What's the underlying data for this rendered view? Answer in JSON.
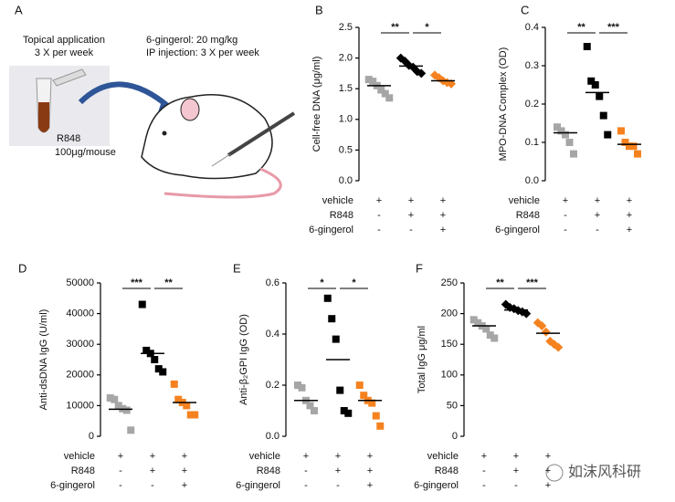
{
  "panel_a": {
    "label": "A",
    "left_line1": "Topical application",
    "left_line2": "3 X per week",
    "right_line1": "6-gingerol: 20 mg/kg",
    "right_line2": "IP injection: 3 X per week",
    "drug": "R848",
    "dose": "100μg/mouse"
  },
  "watermark": "如沫风科研",
  "chart_data": [
    {
      "type": "dot",
      "label": "B",
      "ylabel": "Cell-free DNA (μg/ml)",
      "ylim": [
        0,
        2.5
      ],
      "yticks": [
        {
          "value": 0,
          "label": "0.0"
        },
        0.5,
        {
          "value": 1,
          "label": "1.0"
        },
        1.5,
        {
          "value": 2,
          "label": "2.0"
        },
        2.5
      ],
      "series": [
        {
          "color": "#a6a6a6",
          "marker": "square",
          "values": [
            1.65,
            1.62,
            1.55,
            1.48,
            1.42,
            1.35
          ],
          "mean": 1.55
        },
        {
          "color": "#000000",
          "marker": "diamond",
          "values": [
            2.0,
            1.95,
            1.88,
            1.85,
            1.78,
            1.75
          ],
          "mean": 1.87
        },
        {
          "color": "#f5821f",
          "marker": "diamond",
          "values": [
            1.72,
            1.68,
            1.63,
            1.6,
            1.58
          ],
          "mean": 1.63
        }
      ],
      "comparisons": [
        {
          "groups": [
            0,
            1
          ],
          "label": "**"
        },
        {
          "groups": [
            1,
            2
          ],
          "label": "*"
        }
      ],
      "conditions": [
        {
          "name": "vehicle",
          "signs": [
            "+",
            "+",
            "+"
          ]
        },
        {
          "name": "R848",
          "signs": [
            "-",
            "+",
            "+"
          ]
        },
        {
          "name": "6-gingerol",
          "signs": [
            "-",
            "-",
            "+"
          ]
        }
      ]
    },
    {
      "type": "dot",
      "label": "C",
      "ylabel": "MPO-DNA Complex (OD)",
      "ylim": [
        0,
        0.4
      ],
      "yticks": [
        {
          "value": 0,
          "label": "0.0"
        },
        0.1,
        0.2,
        0.3,
        0.4
      ],
      "series": [
        {
          "color": "#a6a6a6",
          "marker": "square",
          "values": [
            0.14,
            0.13,
            0.12,
            0.1,
            0.07
          ],
          "mean": 0.125
        },
        {
          "color": "#000000",
          "marker": "square",
          "values": [
            0.35,
            0.26,
            0.25,
            0.22,
            0.17,
            0.12
          ],
          "mean": 0.23
        },
        {
          "color": "#f5821f",
          "marker": "square",
          "values": [
            0.13,
            0.1,
            0.09,
            0.09,
            0.07
          ],
          "mean": 0.095
        }
      ],
      "comparisons": [
        {
          "groups": [
            0,
            1
          ],
          "label": "**"
        },
        {
          "groups": [
            1,
            2
          ],
          "label": "***"
        }
      ],
      "conditions": [
        {
          "name": "vehicle",
          "signs": [
            "+",
            "+",
            "+"
          ]
        },
        {
          "name": "R848",
          "signs": [
            "-",
            "+",
            "+"
          ]
        },
        {
          "name": "6-gingerol",
          "signs": [
            "-",
            "-",
            "+"
          ]
        }
      ]
    },
    {
      "type": "dot",
      "label": "D",
      "ylabel": "Anti-dsDNA IgG (U/ml)",
      "ylim": [
        0,
        50000
      ],
      "yticks": [
        0,
        10000,
        20000,
        30000,
        40000,
        50000
      ],
      "series": [
        {
          "color": "#a6a6a6",
          "marker": "square",
          "values": [
            12500,
            12000,
            10000,
            9000,
            8500,
            2000
          ],
          "mean": 8800
        },
        {
          "color": "#000000",
          "marker": "square",
          "values": [
            43000,
            28000,
            27000,
            25000,
            22000,
            21000
          ],
          "mean": 27000
        },
        {
          "color": "#f5821f",
          "marker": "square",
          "values": [
            17000,
            12000,
            11000,
            10000,
            7000,
            7000
          ],
          "mean": 11000
        }
      ],
      "comparisons": [
        {
          "groups": [
            0,
            1
          ],
          "label": "***"
        },
        {
          "groups": [
            1,
            2
          ],
          "label": "**"
        }
      ],
      "conditions": [
        {
          "name": "vehicle",
          "signs": [
            "+",
            "+",
            "+"
          ]
        },
        {
          "name": "R848",
          "signs": [
            "-",
            "+",
            "+"
          ]
        },
        {
          "name": "6-gingerol",
          "signs": [
            "-",
            "-",
            "+"
          ]
        }
      ]
    },
    {
      "type": "dot",
      "label": "E",
      "ylabel": "Anti-β₂GPI IgG (OD)",
      "ylim": [
        0,
        0.6
      ],
      "yticks": [
        {
          "value": 0,
          "label": "0.0"
        },
        0.2,
        0.4,
        0.6
      ],
      "series": [
        {
          "color": "#a6a6a6",
          "marker": "square",
          "values": [
            0.2,
            0.19,
            0.14,
            0.12,
            0.1
          ],
          "mean": 0.14
        },
        {
          "color": "#000000",
          "marker": "square",
          "values": [
            0.54,
            0.46,
            0.38,
            0.18,
            0.1,
            0.09
          ],
          "mean": 0.3
        },
        {
          "color": "#f5821f",
          "marker": "square",
          "values": [
            0.2,
            0.16,
            0.14,
            0.13,
            0.08,
            0.04
          ],
          "mean": 0.14
        }
      ],
      "comparisons": [
        {
          "groups": [
            0,
            1
          ],
          "label": "*"
        },
        {
          "groups": [
            1,
            2
          ],
          "label": "*"
        }
      ],
      "conditions": [
        {
          "name": "vehicle",
          "signs": [
            "+",
            "+",
            "+"
          ]
        },
        {
          "name": "R848",
          "signs": [
            "-",
            "+",
            "+"
          ]
        },
        {
          "name": "6-gingerol",
          "signs": [
            "-",
            "-",
            "+"
          ]
        }
      ]
    },
    {
      "type": "dot",
      "label": "F",
      "ylabel": "Total IgG μg/ml",
      "ylim": [
        0,
        250
      ],
      "yticks": [
        0,
        50,
        100,
        150,
        200,
        250
      ],
      "series": [
        {
          "color": "#a6a6a6",
          "marker": "square",
          "values": [
            190,
            185,
            180,
            175,
            165,
            160
          ],
          "mean": 180
        },
        {
          "color": "#000000",
          "marker": "diamond",
          "values": [
            215,
            210,
            208,
            205,
            203,
            200
          ],
          "mean": 206
        },
        {
          "color": "#f5821f",
          "marker": "diamond",
          "values": [
            185,
            180,
            170,
            155,
            150,
            145
          ],
          "mean": 168
        }
      ],
      "comparisons": [
        {
          "groups": [
            0,
            1
          ],
          "label": "**"
        },
        {
          "groups": [
            1,
            2
          ],
          "label": "***"
        }
      ],
      "conditions": [
        {
          "name": "vehicle",
          "signs": [
            "+",
            "+",
            "+"
          ]
        },
        {
          "name": "R848",
          "signs": [
            "-",
            "+",
            "+"
          ]
        },
        {
          "name": "6-gingerol",
          "signs": [
            "-",
            "-",
            "+"
          ]
        }
      ]
    }
  ]
}
